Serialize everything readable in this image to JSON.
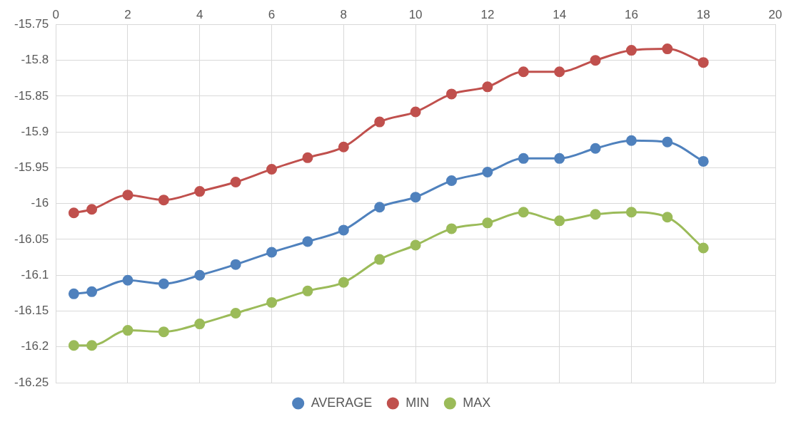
{
  "chart_data": {
    "type": "line",
    "x": [
      0.5,
      1,
      2,
      3,
      4,
      5,
      6,
      7,
      8,
      9,
      10,
      11,
      12,
      13,
      14,
      15,
      16,
      17,
      18
    ],
    "series": [
      {
        "name": "AVERAGE",
        "color": "#4f81bd",
        "values": [
          -16.126,
          -16.123,
          -16.107,
          -16.112,
          -16.1,
          -16.085,
          -16.068,
          -16.053,
          -16.037,
          -16.005,
          -15.991,
          -15.968,
          -15.956,
          -15.937,
          -15.937,
          -15.923,
          -15.912,
          -15.914,
          -15.941
        ]
      },
      {
        "name": "MIN",
        "color": "#c0504d",
        "values": [
          -16.013,
          -16.008,
          -15.988,
          -15.995,
          -15.983,
          -15.97,
          -15.952,
          -15.936,
          -15.921,
          -15.886,
          -15.872,
          -15.847,
          -15.837,
          -15.816,
          -15.816,
          -15.8,
          -15.786,
          -15.784,
          -15.803
        ]
      },
      {
        "name": "MAX",
        "color": "#9bbb59",
        "values": [
          -16.198,
          -16.198,
          -16.177,
          -16.179,
          -16.168,
          -16.153,
          -16.138,
          -16.122,
          -16.11,
          -16.078,
          -16.058,
          -16.035,
          -16.027,
          -16.012,
          -16.024,
          -16.015,
          -16.012,
          -16.019,
          -16.062
        ]
      }
    ],
    "xlim": [
      0,
      20
    ],
    "xticks": [
      0,
      2,
      4,
      6,
      8,
      10,
      12,
      14,
      16,
      18,
      20
    ],
    "ylim": [
      -16.25,
      -15.75
    ],
    "yticks": [
      -16.25,
      -16.2,
      -16.15,
      -16.1,
      -16.05,
      -16,
      -15.95,
      -15.9,
      -15.85,
      -15.8,
      -15.75
    ],
    "grid": true,
    "legend": "bottom",
    "marker": "circle",
    "line_style": "solid"
  }
}
